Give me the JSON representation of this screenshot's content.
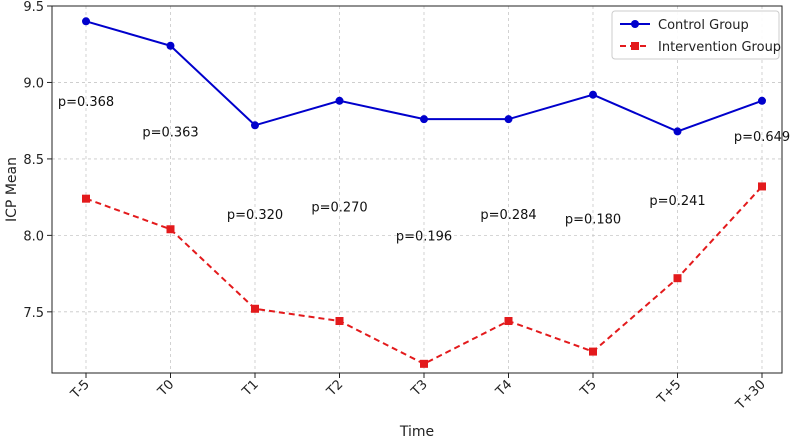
{
  "chart_data": {
    "type": "line",
    "title": "",
    "xlabel": "Time",
    "ylabel": "ICP Mean",
    "categories": [
      "T-5",
      "T0",
      "T1",
      "T2",
      "T3",
      "T4",
      "T5",
      "T+5",
      "T+30"
    ],
    "ylim": [
      7.1,
      9.5
    ],
    "yticks": [
      "7.5",
      "8.0",
      "8.5",
      "9.0",
      "9.5"
    ],
    "ytick_values": [
      7.5,
      8.0,
      8.5,
      9.0,
      9.5
    ],
    "grid": true,
    "legend_position": "top-right",
    "series": [
      {
        "name": "Control Group",
        "color": "#0000cc",
        "line_style": "solid",
        "marker": "circle",
        "values": [
          9.4,
          9.24,
          8.72,
          8.88,
          8.76,
          8.76,
          8.92,
          8.68,
          8.88
        ]
      },
      {
        "name": "Intervention Group",
        "color": "#e31a1c",
        "line_style": "dashed",
        "marker": "square",
        "values": [
          8.24,
          8.04,
          7.52,
          7.44,
          7.16,
          7.44,
          7.24,
          7.72,
          8.32
        ]
      }
    ],
    "annotations": [
      {
        "text": "p=0.368",
        "category": "T-5",
        "y": 8.88
      },
      {
        "text": "p=0.363",
        "category": "T0",
        "y": 8.68
      },
      {
        "text": "p=0.320",
        "category": "T1",
        "y": 8.14
      },
      {
        "text": "p=0.270",
        "category": "T2",
        "y": 8.19
      },
      {
        "text": "p=0.196",
        "category": "T3",
        "y": 8.0
      },
      {
        "text": "p=0.284",
        "category": "T4",
        "y": 8.14
      },
      {
        "text": "p=0.180",
        "category": "T5",
        "y": 8.11
      },
      {
        "text": "p=0.241",
        "category": "T+5",
        "y": 8.23
      },
      {
        "text": "p=0.649",
        "category": "T+30",
        "y": 8.65
      }
    ]
  }
}
